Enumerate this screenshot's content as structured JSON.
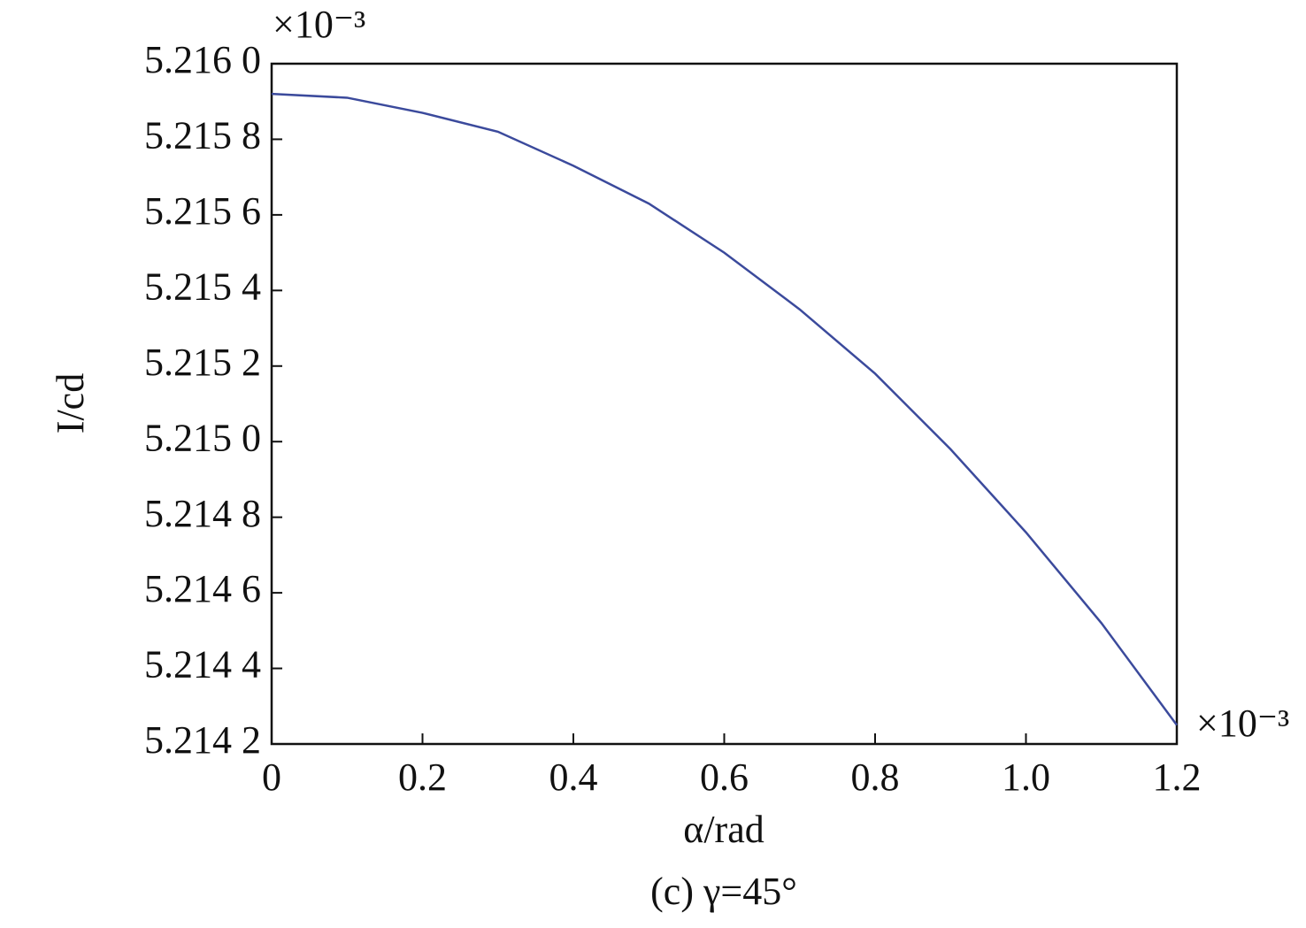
{
  "chart_data": {
    "type": "line",
    "xlabel": "α/rad",
    "ylabel": "I/cd",
    "caption": "(c) γ=45°",
    "x_multiplier": "×10⁻³",
    "y_multiplier": "×10⁻³",
    "x": [
      0,
      0.1,
      0.2,
      0.3,
      0.4,
      0.5,
      0.6,
      0.7,
      0.8,
      0.9,
      1.0,
      1.1,
      1.2
    ],
    "series": [
      {
        "color": "#3b4a9c",
        "values": [
          5.21592,
          5.21591,
          5.21587,
          5.21582,
          5.21573,
          5.21563,
          5.2155,
          5.21535,
          5.21518,
          5.21498,
          5.21476,
          5.21452,
          5.21425
        ]
      }
    ],
    "xlim": [
      0,
      1.2
    ],
    "xticks": [
      0,
      0.2,
      0.4,
      0.6,
      0.8,
      {
        "value": 1,
        "label": "1.0"
      },
      1.2
    ],
    "ylim": [
      5.2142,
      5.216
    ],
    "yticks": [
      {
        "value": 5.2142,
        "label": "5.214 2"
      },
      {
        "value": 5.2144,
        "label": "5.214 4"
      },
      {
        "value": 5.2146,
        "label": "5.214 6"
      },
      {
        "value": 5.2148,
        "label": "5.214 8"
      },
      {
        "value": 5.215,
        "label": "5.215 0"
      },
      {
        "value": 5.2152,
        "label": "5.215 2"
      },
      {
        "value": 5.2154,
        "label": "5.215 4"
      },
      {
        "value": 5.2156,
        "label": "5.215 6"
      },
      {
        "value": 5.2158,
        "label": "5.215 8"
      },
      {
        "value": 5.216,
        "label": "5.216 0"
      }
    ],
    "grid": false
  }
}
